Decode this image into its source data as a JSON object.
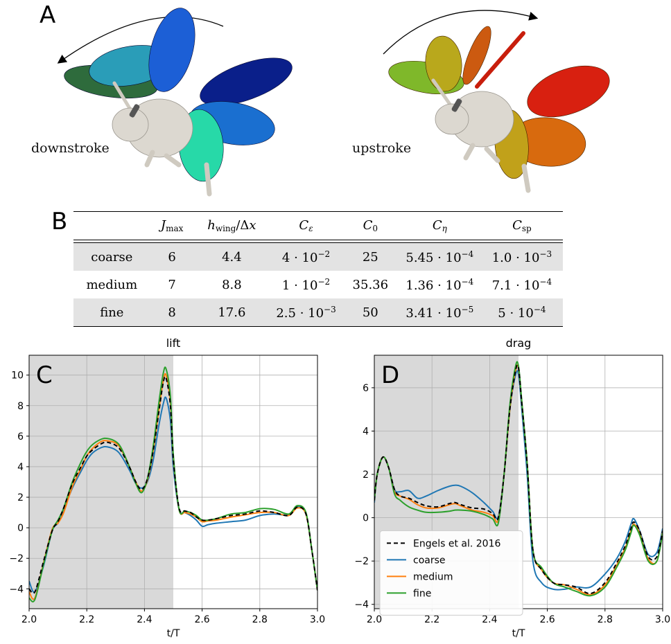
{
  "panels": {
    "a": "A",
    "b": "B",
    "c": "C",
    "d": "D"
  },
  "illustration": {
    "downstroke_label": "downstroke",
    "upstroke_label": "upstroke",
    "downstroke_colors": [
      "#2e6b3c",
      "#2a9db8",
      "#1c5fd6",
      "#0a1f8a",
      "#1a6fd0",
      "#27d9a8"
    ],
    "upstroke_colors": [
      "#7fb82a",
      "#b9a81c",
      "#cc5a10",
      "#d82010",
      "#d86a0e",
      "#c1a11a",
      "#5dab48"
    ],
    "body_color": "#dcd8d0"
  },
  "table": {
    "headers": [
      "",
      "J_max",
      "h_wing/Δx",
      "C_ε",
      "C_0",
      "C_η",
      "C_sp"
    ],
    "rows": [
      {
        "name": "coarse",
        "jmax": "6",
        "h": "4.4",
        "ce_m": "4",
        "ce_e": "−2",
        "c0": "25",
        "ceta_m": "5.45",
        "ceta_e": "−4",
        "csp_m": "1.0",
        "csp_e": "−3"
      },
      {
        "name": "medium",
        "jmax": "7",
        "h": "8.8",
        "ce_m": "1",
        "ce_e": "−2",
        "c0": "35.36",
        "ceta_m": "1.36",
        "ceta_e": "−4",
        "csp_m": "7.1",
        "csp_e": "−4"
      },
      {
        "name": "fine",
        "jmax": "8",
        "h": "17.6",
        "ce_m": "2.5",
        "ce_e": "−3",
        "c0": "50",
        "ceta_m": "3.41",
        "ceta_e": "−5",
        "csp_m": "5",
        "csp_e": "−4"
      }
    ]
  },
  "chart_data": [
    {
      "type": "line",
      "title": "lift",
      "xlabel": "t/T",
      "ylabel": "",
      "xlim": [
        2.0,
        3.0
      ],
      "ylim": [
        -5.3,
        11.3
      ],
      "xticks": [
        2.0,
        2.2,
        2.4,
        2.6,
        2.8,
        3.0
      ],
      "yticks": [
        -4,
        -2,
        0,
        2,
        4,
        6,
        8,
        10
      ],
      "grid": true,
      "shaded_region": [
        2.0,
        2.5
      ],
      "series": [
        {
          "name": "Engels et al. 2016",
          "color": "#000000",
          "dashed": true,
          "x": [
            2.0,
            2.02,
            2.05,
            2.08,
            2.1,
            2.12,
            2.15,
            2.18,
            2.2,
            2.22,
            2.25,
            2.27,
            2.3,
            2.32,
            2.35,
            2.37,
            2.39,
            2.41,
            2.43,
            2.45,
            2.465,
            2.475,
            2.49,
            2.5,
            2.52,
            2.54,
            2.56,
            2.58,
            2.6,
            2.62,
            2.65,
            2.7,
            2.75,
            2.8,
            2.85,
            2.9,
            2.93,
            2.96,
            2.98,
            3.0
          ],
          "y": [
            -4.0,
            -4.2,
            -2.2,
            -0.2,
            0.4,
            1.3,
            2.9,
            4.0,
            4.7,
            5.1,
            5.5,
            5.6,
            5.4,
            5.0,
            3.9,
            3.0,
            2.5,
            3.2,
            5.0,
            7.6,
            9.5,
            9.8,
            8.0,
            4.5,
            1.3,
            1.1,
            1.0,
            0.7,
            0.5,
            0.5,
            0.6,
            0.8,
            0.9,
            1.1,
            1.0,
            0.8,
            1.35,
            0.9,
            -1.4,
            -4.1
          ]
        },
        {
          "name": "coarse",
          "color": "#1f77b4",
          "x": [
            2.0,
            2.02,
            2.05,
            2.08,
            2.1,
            2.12,
            2.15,
            2.18,
            2.2,
            2.22,
            2.25,
            2.27,
            2.3,
            2.32,
            2.35,
            2.37,
            2.39,
            2.41,
            2.43,
            2.45,
            2.465,
            2.475,
            2.49,
            2.5,
            2.52,
            2.54,
            2.56,
            2.58,
            2.6,
            2.62,
            2.65,
            2.7,
            2.75,
            2.8,
            2.85,
            2.9,
            2.93,
            2.96,
            2.98,
            3.0
          ],
          "y": [
            -3.5,
            -4.2,
            -2.5,
            -0.2,
            0.3,
            1.2,
            2.6,
            3.7,
            4.4,
            4.9,
            5.25,
            5.3,
            5.1,
            4.7,
            3.7,
            2.9,
            2.6,
            3.0,
            4.4,
            6.7,
            8.1,
            8.5,
            7.0,
            4.0,
            1.2,
            1.0,
            0.8,
            0.5,
            0.1,
            0.2,
            0.3,
            0.4,
            0.5,
            0.8,
            0.9,
            0.85,
            1.4,
            0.9,
            -1.4,
            -4.1
          ]
        },
        {
          "name": "medium",
          "color": "#ff7f0e",
          "x": [
            2.0,
            2.02,
            2.05,
            2.08,
            2.1,
            2.12,
            2.15,
            2.18,
            2.2,
            2.22,
            2.25,
            2.27,
            2.3,
            2.32,
            2.35,
            2.37,
            2.39,
            2.41,
            2.43,
            2.45,
            2.465,
            2.475,
            2.49,
            2.5,
            2.52,
            2.54,
            2.56,
            2.58,
            2.6,
            2.62,
            2.65,
            2.7,
            2.75,
            2.8,
            2.85,
            2.9,
            2.93,
            2.96,
            2.98,
            3.0
          ],
          "y": [
            -4.2,
            -4.6,
            -2.3,
            -0.1,
            0.3,
            1.0,
            2.7,
            3.9,
            4.7,
            5.2,
            5.65,
            5.7,
            5.55,
            5.1,
            3.9,
            3.0,
            2.4,
            3.1,
            5.0,
            7.7,
            9.6,
            10.0,
            8.2,
            4.6,
            1.2,
            1.0,
            0.9,
            0.7,
            0.4,
            0.45,
            0.5,
            0.7,
            0.85,
            1.0,
            1.0,
            0.8,
            1.3,
            0.9,
            -1.4,
            -4.1
          ]
        },
        {
          "name": "fine",
          "color": "#2ca02c",
          "x": [
            2.0,
            2.02,
            2.05,
            2.08,
            2.1,
            2.12,
            2.15,
            2.18,
            2.2,
            2.22,
            2.25,
            2.27,
            2.3,
            2.32,
            2.35,
            2.37,
            2.39,
            2.41,
            2.43,
            2.45,
            2.465,
            2.475,
            2.49,
            2.5,
            2.52,
            2.54,
            2.56,
            2.58,
            2.6,
            2.62,
            2.65,
            2.7,
            2.75,
            2.8,
            2.85,
            2.9,
            2.93,
            2.96,
            2.98,
            3.0
          ],
          "y": [
            -4.6,
            -4.7,
            -2.4,
            -0.2,
            0.5,
            1.3,
            3.0,
            4.3,
            5.0,
            5.45,
            5.8,
            5.85,
            5.65,
            5.2,
            3.9,
            2.9,
            2.3,
            3.2,
            5.3,
            8.2,
            10.1,
            10.4,
            8.6,
            4.8,
            1.2,
            1.1,
            1.0,
            0.8,
            0.5,
            0.5,
            0.6,
            0.9,
            1.0,
            1.25,
            1.2,
            0.9,
            1.45,
            1.0,
            -1.4,
            -4.1
          ]
        }
      ]
    },
    {
      "type": "line",
      "title": "drag",
      "xlabel": "t/T",
      "ylabel": "",
      "xlim": [
        2.0,
        3.0
      ],
      "ylim": [
        -4.2,
        7.5
      ],
      "xticks": [
        2.0,
        2.2,
        2.4,
        2.6,
        2.8,
        3.0
      ],
      "yticks": [
        -4,
        -2,
        0,
        2,
        4,
        6
      ],
      "grid": true,
      "shaded_region": [
        2.0,
        2.5
      ],
      "legend_position": "lower-left",
      "series": [
        {
          "name": "Engels et al. 2016",
          "color": "#000000",
          "dashed": true,
          "x": [
            2.0,
            2.01,
            2.03,
            2.05,
            2.07,
            2.09,
            2.12,
            2.15,
            2.18,
            2.22,
            2.26,
            2.28,
            2.3,
            2.34,
            2.38,
            2.41,
            2.43,
            2.45,
            2.47,
            2.49,
            2.5,
            2.51,
            2.53,
            2.55,
            2.58,
            2.62,
            2.66,
            2.7,
            2.75,
            2.8,
            2.84,
            2.87,
            2.89,
            2.9,
            2.92,
            2.95,
            2.98,
            3.0
          ],
          "y": [
            0.8,
            2.0,
            2.8,
            2.3,
            1.3,
            1.0,
            0.9,
            0.7,
            0.55,
            0.5,
            0.65,
            0.7,
            0.6,
            0.45,
            0.4,
            0.2,
            0.0,
            2.0,
            5.0,
            6.8,
            6.9,
            5.5,
            2.5,
            -1.5,
            -2.4,
            -3.0,
            -3.1,
            -3.2,
            -3.5,
            -3.0,
            -2.1,
            -1.3,
            -0.5,
            -0.2,
            -0.6,
            -1.8,
            -1.8,
            -0.6
          ]
        },
        {
          "name": "coarse",
          "color": "#1f77b4",
          "x": [
            2.0,
            2.01,
            2.03,
            2.05,
            2.07,
            2.09,
            2.12,
            2.15,
            2.18,
            2.22,
            2.26,
            2.28,
            2.3,
            2.34,
            2.38,
            2.41,
            2.43,
            2.45,
            2.47,
            2.49,
            2.5,
            2.51,
            2.53,
            2.55,
            2.58,
            2.62,
            2.66,
            2.7,
            2.75,
            2.8,
            2.84,
            2.87,
            2.89,
            2.9,
            2.92,
            2.95,
            2.98,
            3.0
          ],
          "y": [
            0.7,
            2.0,
            2.8,
            2.3,
            1.3,
            1.2,
            1.25,
            0.9,
            1.0,
            1.25,
            1.45,
            1.5,
            1.45,
            1.15,
            0.7,
            0.3,
            0.05,
            2.0,
            5.0,
            6.6,
            6.6,
            5.2,
            2.0,
            -2.0,
            -3.0,
            -3.3,
            -3.3,
            -3.2,
            -3.2,
            -2.6,
            -1.9,
            -1.1,
            -0.3,
            -0.05,
            -0.6,
            -1.7,
            -1.6,
            -0.5
          ]
        },
        {
          "name": "medium",
          "color": "#ff7f0e",
          "x": [
            2.0,
            2.01,
            2.03,
            2.05,
            2.07,
            2.09,
            2.12,
            2.15,
            2.18,
            2.22,
            2.26,
            2.28,
            2.3,
            2.34,
            2.38,
            2.41,
            2.43,
            2.45,
            2.47,
            2.49,
            2.5,
            2.51,
            2.53,
            2.55,
            2.58,
            2.62,
            2.66,
            2.7,
            2.75,
            2.8,
            2.84,
            2.87,
            2.89,
            2.9,
            2.92,
            2.95,
            2.98,
            3.0
          ],
          "y": [
            0.8,
            2.0,
            2.8,
            2.3,
            1.2,
            1.0,
            0.85,
            0.6,
            0.45,
            0.45,
            0.6,
            0.65,
            0.55,
            0.35,
            0.25,
            0.1,
            -0.1,
            2.0,
            5.0,
            6.8,
            6.9,
            5.5,
            2.5,
            -1.5,
            -2.4,
            -3.0,
            -3.1,
            -3.3,
            -3.55,
            -3.1,
            -2.2,
            -1.4,
            -0.6,
            -0.3,
            -0.7,
            -1.9,
            -2.0,
            -0.6
          ]
        },
        {
          "name": "fine",
          "color": "#2ca02c",
          "x": [
            2.0,
            2.01,
            2.03,
            2.05,
            2.07,
            2.09,
            2.12,
            2.15,
            2.18,
            2.22,
            2.26,
            2.28,
            2.3,
            2.34,
            2.38,
            2.41,
            2.43,
            2.45,
            2.47,
            2.49,
            2.5,
            2.51,
            2.53,
            2.55,
            2.58,
            2.62,
            2.66,
            2.7,
            2.75,
            2.8,
            2.84,
            2.87,
            2.89,
            2.9,
            2.92,
            2.95,
            2.98,
            3.0
          ],
          "y": [
            0.8,
            2.0,
            2.8,
            2.3,
            1.1,
            0.8,
            0.5,
            0.35,
            0.25,
            0.25,
            0.3,
            0.35,
            0.35,
            0.3,
            0.15,
            -0.05,
            -0.25,
            2.0,
            5.2,
            7.0,
            7.0,
            5.6,
            2.5,
            -1.5,
            -2.3,
            -3.0,
            -3.2,
            -3.4,
            -3.6,
            -3.2,
            -2.3,
            -1.5,
            -0.7,
            -0.35,
            -0.8,
            -2.0,
            -2.0,
            -0.7
          ]
        }
      ]
    }
  ]
}
